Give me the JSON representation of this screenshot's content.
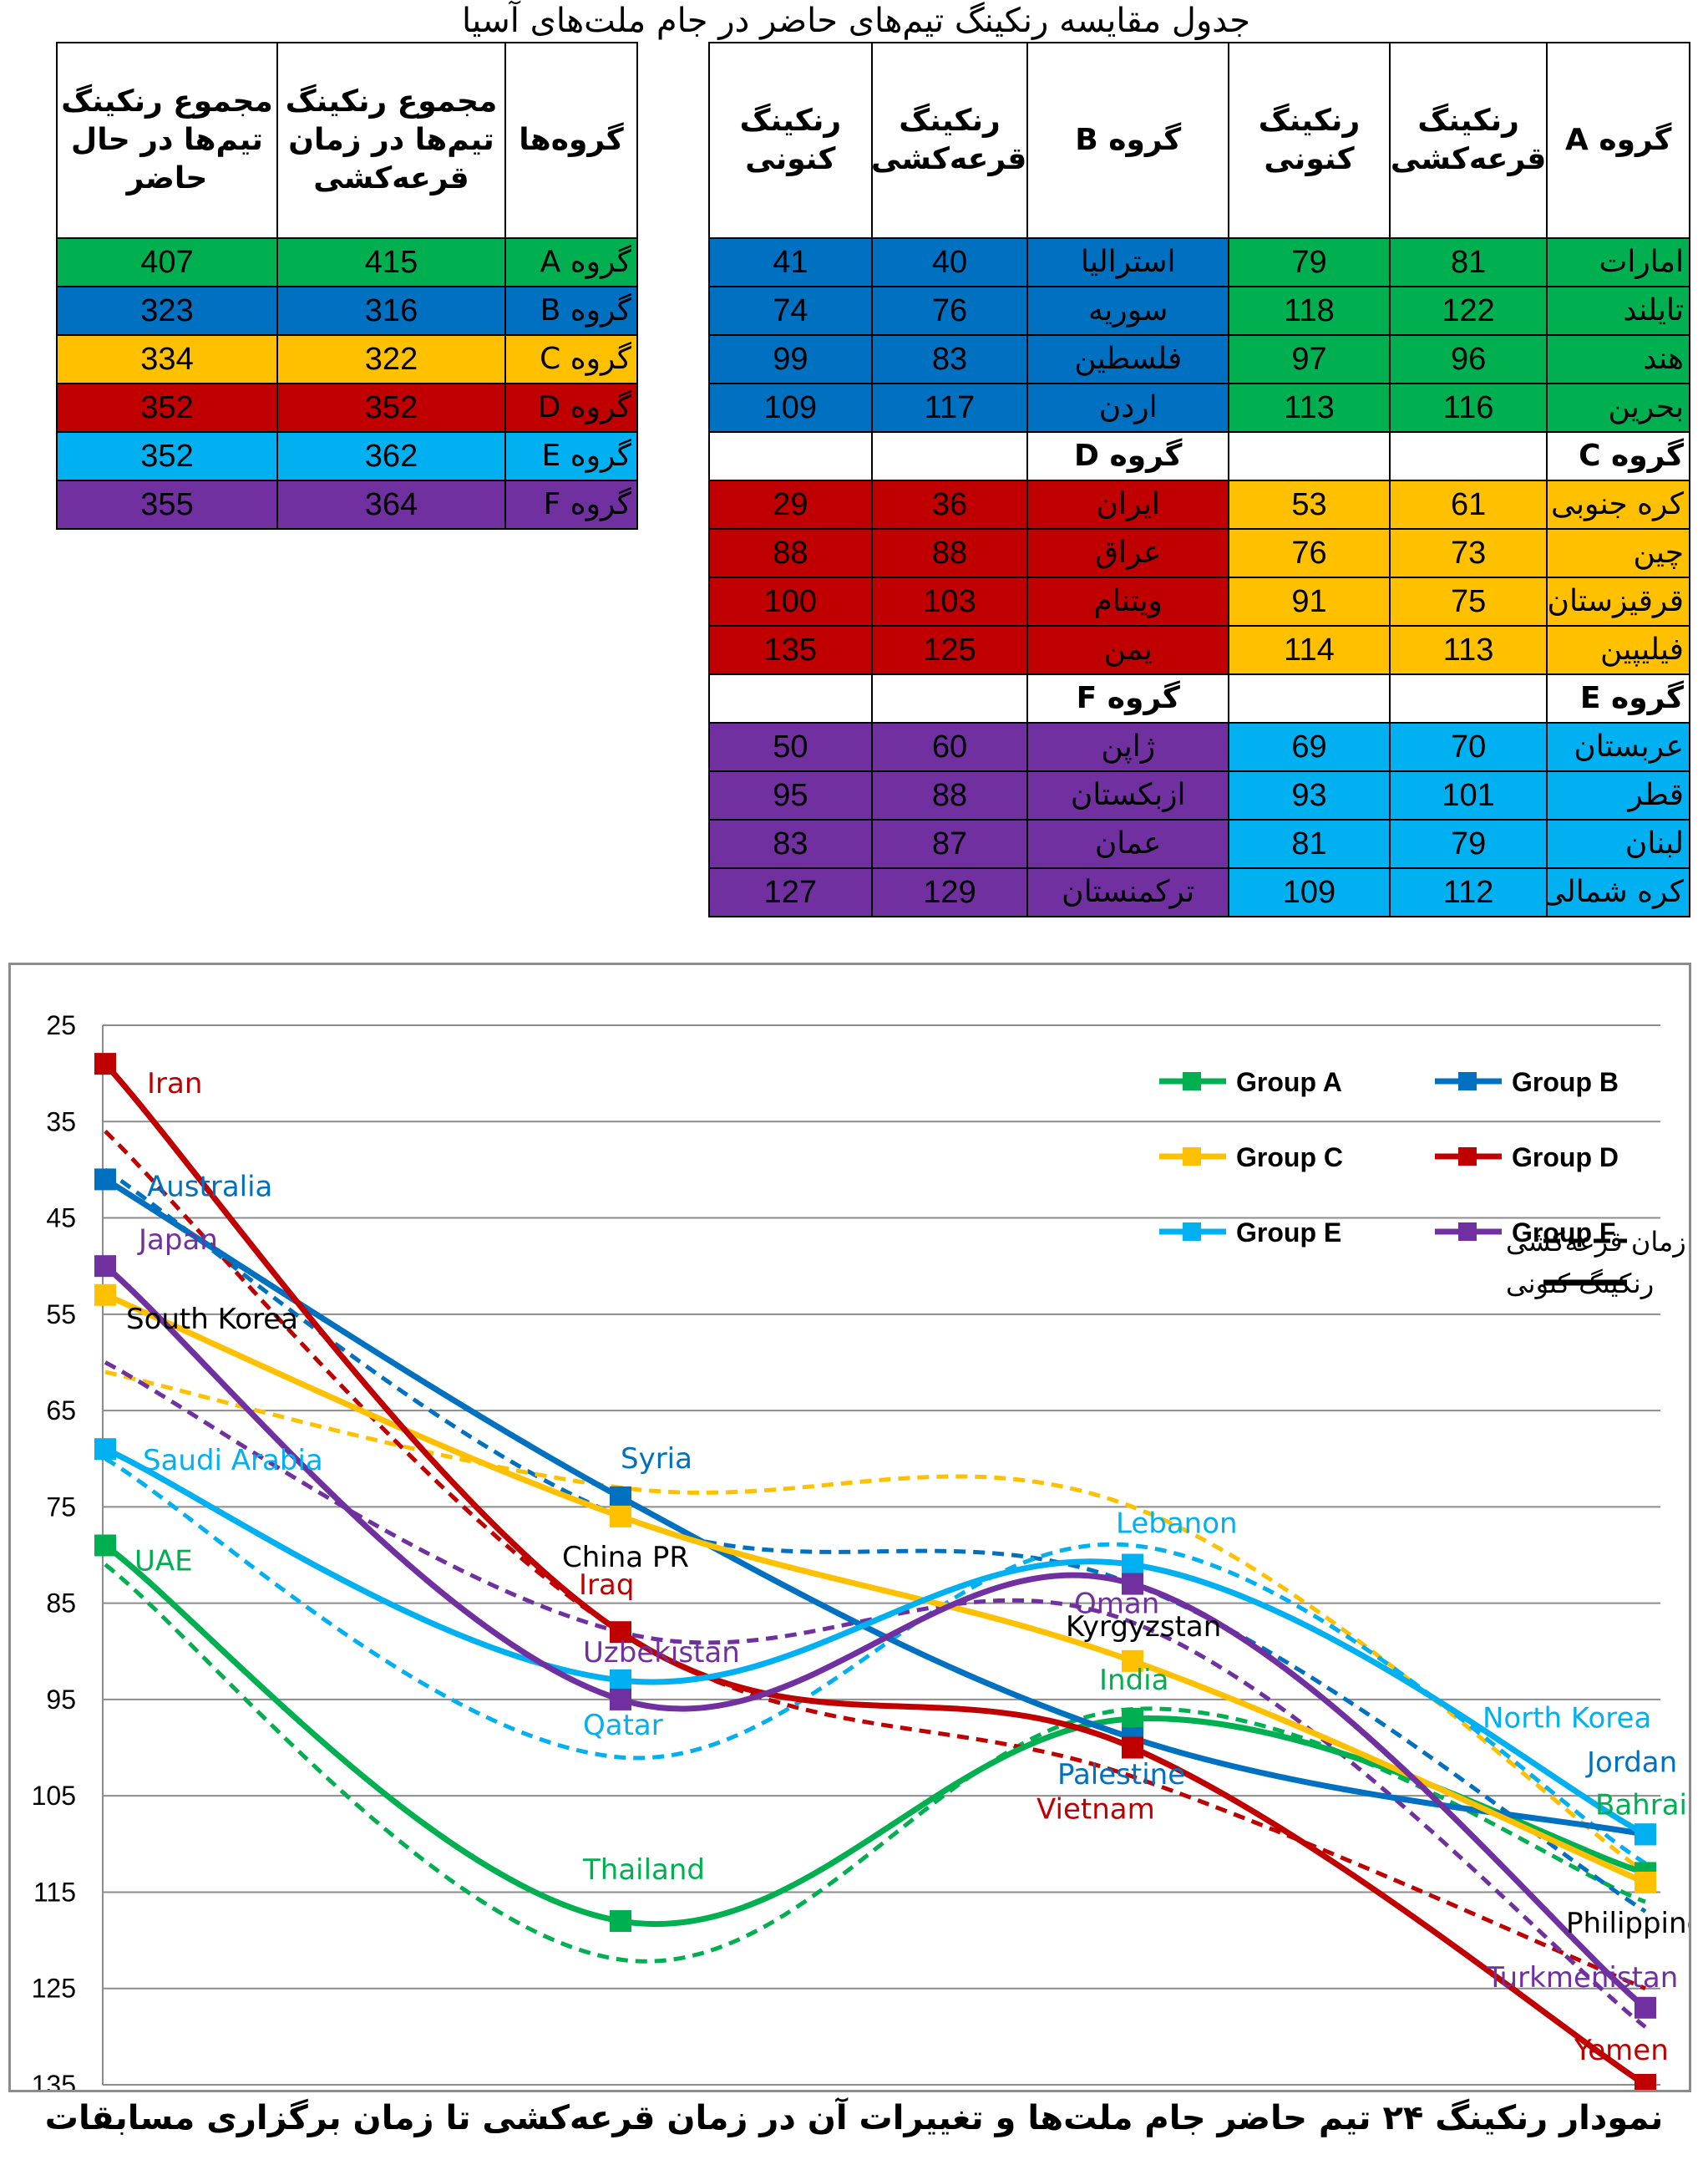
{
  "table_title": "جدول مقایسه رنکینگ تیم‌های حاضر در جام ملت‌های آسیا",
  "colors": {
    "A": "#00B050",
    "B": "#0070C0",
    "C": "#FFC000",
    "D": "#C00000",
    "E": "#00B0F0",
    "F": "#7030A0"
  },
  "main_table": {
    "headers": [
      "گروه A",
      "رنکینگ قرعه‌کشی",
      "رنکینگ کنونی",
      "گروه B",
      "رنکینگ قرعه‌کشی",
      "رنکینگ کنونی"
    ],
    "sections": [
      {
        "left_group": "",
        "right_group": "",
        "rows": [
          {
            "r_team": "امارات",
            "r_draw": "81",
            "r_now": "79",
            "l_team": "استرالیا",
            "l_draw": "40",
            "l_now": "41"
          },
          {
            "r_team": "تایلند",
            "r_draw": "122",
            "r_now": "118",
            "l_team": "سوریه",
            "l_draw": "76",
            "l_now": "74"
          },
          {
            "r_team": "هند",
            "r_draw": "96",
            "r_now": "97",
            "l_team": "فلسطین",
            "l_draw": "83",
            "l_now": "99"
          },
          {
            "r_team": "بحرین",
            "r_draw": "116",
            "r_now": "113",
            "l_team": "اردن",
            "l_draw": "117",
            "l_now": "109"
          }
        ]
      },
      {
        "right_group": "گروه C",
        "left_group": "گروه D",
        "rows": [
          {
            "r_team": "کره جنوبی",
            "r_draw": "61",
            "r_now": "53",
            "l_team": "ایران",
            "l_draw": "36",
            "l_now": "29"
          },
          {
            "r_team": "چین",
            "r_draw": "73",
            "r_now": "76",
            "l_team": "عراق",
            "l_draw": "88",
            "l_now": "88"
          },
          {
            "r_team": "قرقیزستان",
            "r_draw": "75",
            "r_now": "91",
            "l_team": "ویتنام",
            "l_draw": "103",
            "l_now": "100"
          },
          {
            "r_team": "فیلیپین",
            "r_draw": "113",
            "r_now": "114",
            "l_team": "یمن",
            "l_draw": "125",
            "l_now": "135"
          }
        ]
      },
      {
        "right_group": "گروه E",
        "left_group": "گروه F",
        "rows": [
          {
            "r_team": "عربستان",
            "r_draw": "70",
            "r_now": "69",
            "l_team": "ژاپن",
            "l_draw": "60",
            "l_now": "50"
          },
          {
            "r_team": "قطر",
            "r_draw": "101",
            "r_now": "93",
            "l_team": "ازبکستان",
            "l_draw": "88",
            "l_now": "95"
          },
          {
            "r_team": "لبنان",
            "r_draw": "79",
            "r_now": "81",
            "l_team": "عمان",
            "l_draw": "87",
            "l_now": "83"
          },
          {
            "r_team": "کره شمالی",
            "r_draw": "112",
            "r_now": "109",
            "l_team": "ترکمنستان",
            "l_draw": "129",
            "l_now": "127"
          }
        ]
      }
    ]
  },
  "sum_table": {
    "headers": [
      "گروه‌ها",
      "مجموع رنکینگ تیم‌ها در زمان قرعه‌کشی",
      "مجموع رنکینگ تیم‌ها در حال حاضر"
    ],
    "rows": [
      {
        "group": "گروه A",
        "draw": "415",
        "now": "407"
      },
      {
        "group": "گروه B",
        "draw": "316",
        "now": "323"
      },
      {
        "group": "گروه C",
        "draw": "322",
        "now": "334"
      },
      {
        "group": "گروه D",
        "draw": "352",
        "now": "352"
      },
      {
        "group": "گروه E",
        "draw": "362",
        "now": "352"
      },
      {
        "group": "گروه F",
        "draw": "364",
        "now": "355"
      }
    ]
  },
  "chart_caption": "نمودار رنکینگ ۲۴ تیم حاضر جام ملت‌ها و تغییرات آن در زمان قرعه‌کشی تا زمان برگزاری مسابقات",
  "chart_data": {
    "type": "line",
    "y_inverted": true,
    "ylim": [
      25,
      135
    ],
    "yticks": [
      25,
      35,
      45,
      55,
      65,
      75,
      85,
      95,
      105,
      115,
      125,
      135
    ],
    "grid": true,
    "legend_position": "top-right",
    "style_legend": [
      {
        "label": "رنکینگ در زمان قرعه‌کشی",
        "style": "dashed"
      },
      {
        "label": "رنکینگ کنونی",
        "style": "solid"
      }
    ],
    "series": [
      {
        "name": "Group A",
        "color": "#00B050",
        "current": [
          79,
          118,
          97,
          113
        ],
        "draw": [
          81,
          122,
          96,
          116
        ],
        "labels": [
          "UAE",
          "Thailand",
          "India",
          "Bahrain"
        ]
      },
      {
        "name": "Group B",
        "color": "#0070C0",
        "current": [
          41,
          74,
          99,
          109
        ],
        "draw": [
          40,
          76,
          83,
          117
        ],
        "labels": [
          "Australia",
          "Syria",
          "Palestine",
          "Jordan"
        ]
      },
      {
        "name": "Group C",
        "color": "#FFC000",
        "current": [
          53,
          76,
          91,
          114
        ],
        "draw": [
          61,
          73,
          75,
          113
        ],
        "labels": [
          "South Korea",
          "China PR",
          "Kyrgyzstan",
          "Philippines"
        ]
      },
      {
        "name": "Group D",
        "color": "#C00000",
        "current": [
          29,
          88,
          100,
          135
        ],
        "draw": [
          36,
          88,
          103,
          125
        ],
        "labels": [
          "Iran",
          "Iraq",
          "Vietnam",
          "Yemen"
        ]
      },
      {
        "name": "Group E",
        "color": "#00B0F0",
        "current": [
          69,
          93,
          81,
          109
        ],
        "draw": [
          70,
          101,
          79,
          112
        ],
        "labels": [
          "Saudi Arabia",
          "Qatar",
          "Lebanon",
          "North Korea"
        ]
      },
      {
        "name": "Group F",
        "color": "#7030A0",
        "current": [
          50,
          95,
          83,
          127
        ],
        "draw": [
          60,
          88,
          87,
          129
        ],
        "labels": [
          "Japan",
          "Uzbekistan",
          "Oman",
          "Turkmenistan"
        ]
      }
    ]
  }
}
